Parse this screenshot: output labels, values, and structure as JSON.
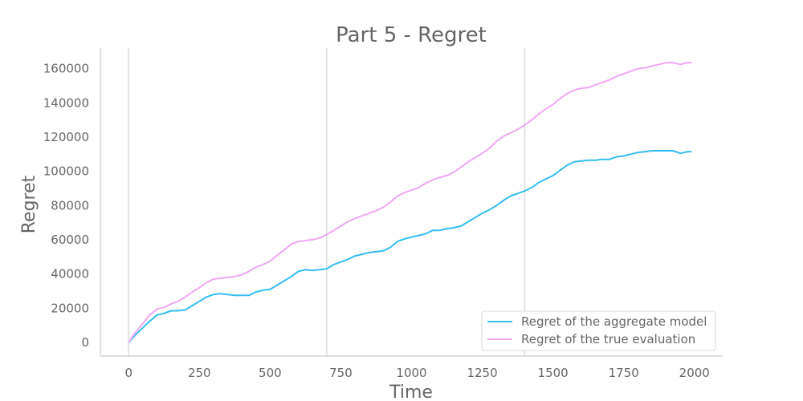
{
  "chart_data": {
    "type": "line",
    "title": "Part 5 - Regret",
    "xlabel": "Time",
    "ylabel": "Regret",
    "xlim": [
      -100,
      2100
    ],
    "ylim": [
      -8000,
      172000
    ],
    "xticks": [
      0,
      250,
      500,
      750,
      1000,
      1250,
      1500,
      1750,
      2000
    ],
    "yticks": [
      0,
      20000,
      40000,
      60000,
      80000,
      100000,
      120000,
      140000,
      160000
    ],
    "vlines": [
      0,
      700,
      1400
    ],
    "grid": false,
    "legend_position": "lower-right",
    "series": [
      {
        "name": "Regret of the aggregate model",
        "color": "#35bdf0",
        "x": [
          0,
          25,
          50,
          75,
          100,
          125,
          150,
          175,
          200,
          225,
          250,
          275,
          300,
          325,
          350,
          375,
          400,
          425,
          450,
          475,
          500,
          525,
          550,
          575,
          600,
          625,
          650,
          675,
          700,
          725,
          750,
          775,
          800,
          825,
          850,
          875,
          900,
          925,
          950,
          975,
          1000,
          1025,
          1050,
          1075,
          1100,
          1125,
          1150,
          1175,
          1200,
          1225,
          1250,
          1275,
          1300,
          1325,
          1350,
          1375,
          1400,
          1425,
          1450,
          1475,
          1500,
          1525,
          1550,
          1575,
          1600,
          1625,
          1650,
          1675,
          1700,
          1725,
          1750,
          1775,
          1800,
          1825,
          1850,
          1875,
          1900,
          1925,
          1950,
          1975,
          1990
        ],
        "values": [
          0,
          4500,
          8500,
          12500,
          16000,
          17000,
          18500,
          18500,
          19000,
          21500,
          24000,
          26500,
          28000,
          28500,
          28000,
          27500,
          27500,
          27500,
          29500,
          30500,
          31000,
          33500,
          36000,
          38500,
          41500,
          42500,
          42000,
          42500,
          43000,
          45500,
          47000,
          48500,
          50500,
          51500,
          52500,
          53000,
          53500,
          55500,
          59000,
          60500,
          61500,
          62500,
          63500,
          65500,
          65500,
          66500,
          67000,
          68000,
          70500,
          73000,
          75500,
          77500,
          80000,
          83000,
          85500,
          87000,
          88500,
          90500,
          93500,
          95500,
          97500,
          100500,
          103500,
          105500,
          106000,
          106500,
          106500,
          107000,
          107000,
          108500,
          109000,
          110000,
          111000,
          111500,
          112000,
          112000,
          112000,
          112000,
          110500,
          111500,
          111500
        ]
      },
      {
        "name": "Regret of the true evaluation",
        "color": "#f0a7f5",
        "x": [
          0,
          25,
          50,
          75,
          100,
          125,
          150,
          175,
          200,
          225,
          250,
          275,
          300,
          325,
          350,
          375,
          400,
          425,
          450,
          475,
          500,
          525,
          550,
          575,
          600,
          625,
          650,
          675,
          700,
          725,
          750,
          775,
          800,
          825,
          850,
          875,
          900,
          925,
          950,
          975,
          1000,
          1025,
          1050,
          1075,
          1100,
          1125,
          1150,
          1175,
          1200,
          1225,
          1250,
          1275,
          1300,
          1325,
          1350,
          1375,
          1400,
          1425,
          1450,
          1475,
          1500,
          1525,
          1550,
          1575,
          1600,
          1625,
          1650,
          1675,
          1700,
          1725,
          1750,
          1775,
          1800,
          1825,
          1850,
          1875,
          1900,
          1925,
          1950,
          1975,
          1990
        ],
        "values": [
          0,
          6000,
          11000,
          16000,
          19500,
          20500,
          22500,
          24000,
          26500,
          29500,
          32000,
          35000,
          37000,
          37500,
          38000,
          38500,
          39500,
          41500,
          44000,
          45500,
          47500,
          51000,
          54000,
          57500,
          59000,
          59500,
          60000,
          61000,
          63000,
          65500,
          68000,
          70500,
          72500,
          74000,
          75500,
          77000,
          79000,
          82000,
          85500,
          87500,
          89000,
          90500,
          93000,
          95000,
          96500,
          97500,
          99500,
          102500,
          105500,
          108000,
          110500,
          113500,
          117500,
          120500,
          122500,
          124500,
          127000,
          130000,
          133500,
          136500,
          139000,
          142500,
          145500,
          147500,
          148500,
          149000,
          150500,
          152000,
          153500,
          155500,
          157000,
          158500,
          160000,
          160500,
          161500,
          162500,
          163500,
          163500,
          162500,
          163500,
          163500
        ]
      }
    ]
  }
}
